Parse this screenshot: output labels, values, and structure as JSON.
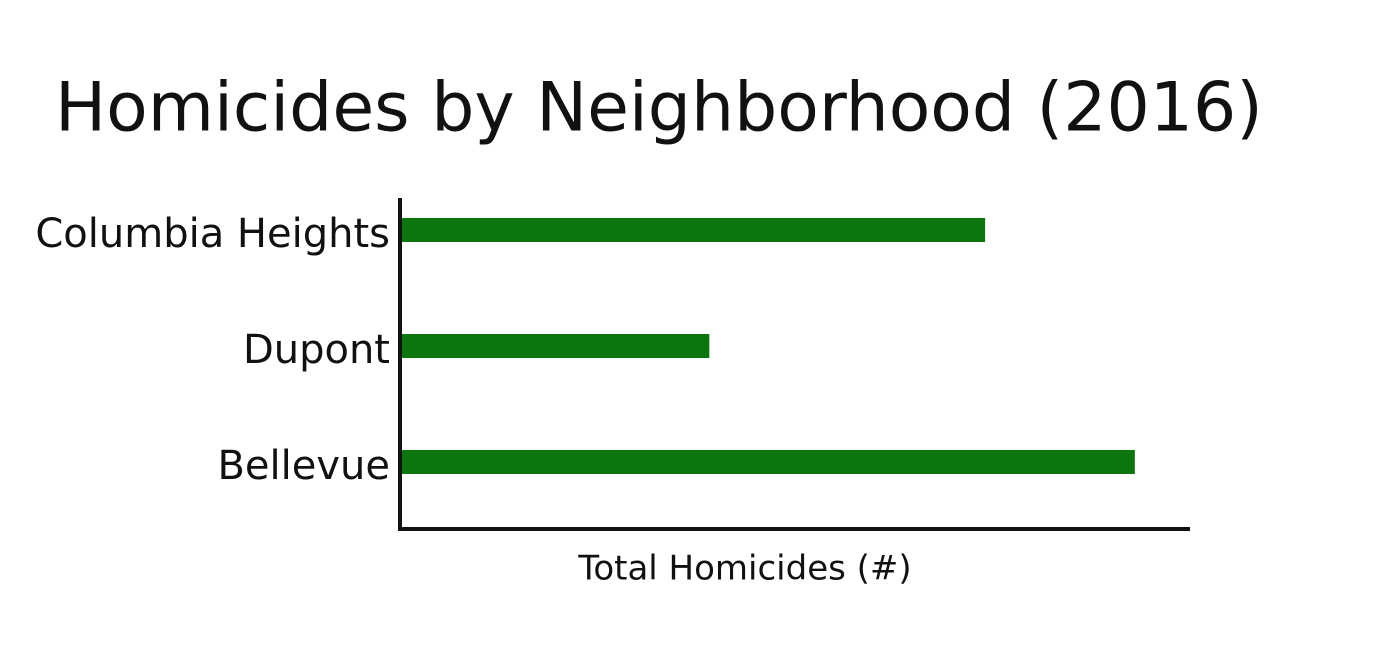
{
  "chart_data": {
    "type": "bar",
    "orientation": "horizontal",
    "title": "Homicides by Neighborhood (2016)",
    "x_label": "Total Homicides (#)",
    "categories": [
      "Columbia Heights",
      "Dupont",
      "Bellevue"
    ],
    "values": [
      74,
      39,
      93
    ],
    "color": "#0b760b",
    "xlim": [
      0,
      100
    ]
  }
}
